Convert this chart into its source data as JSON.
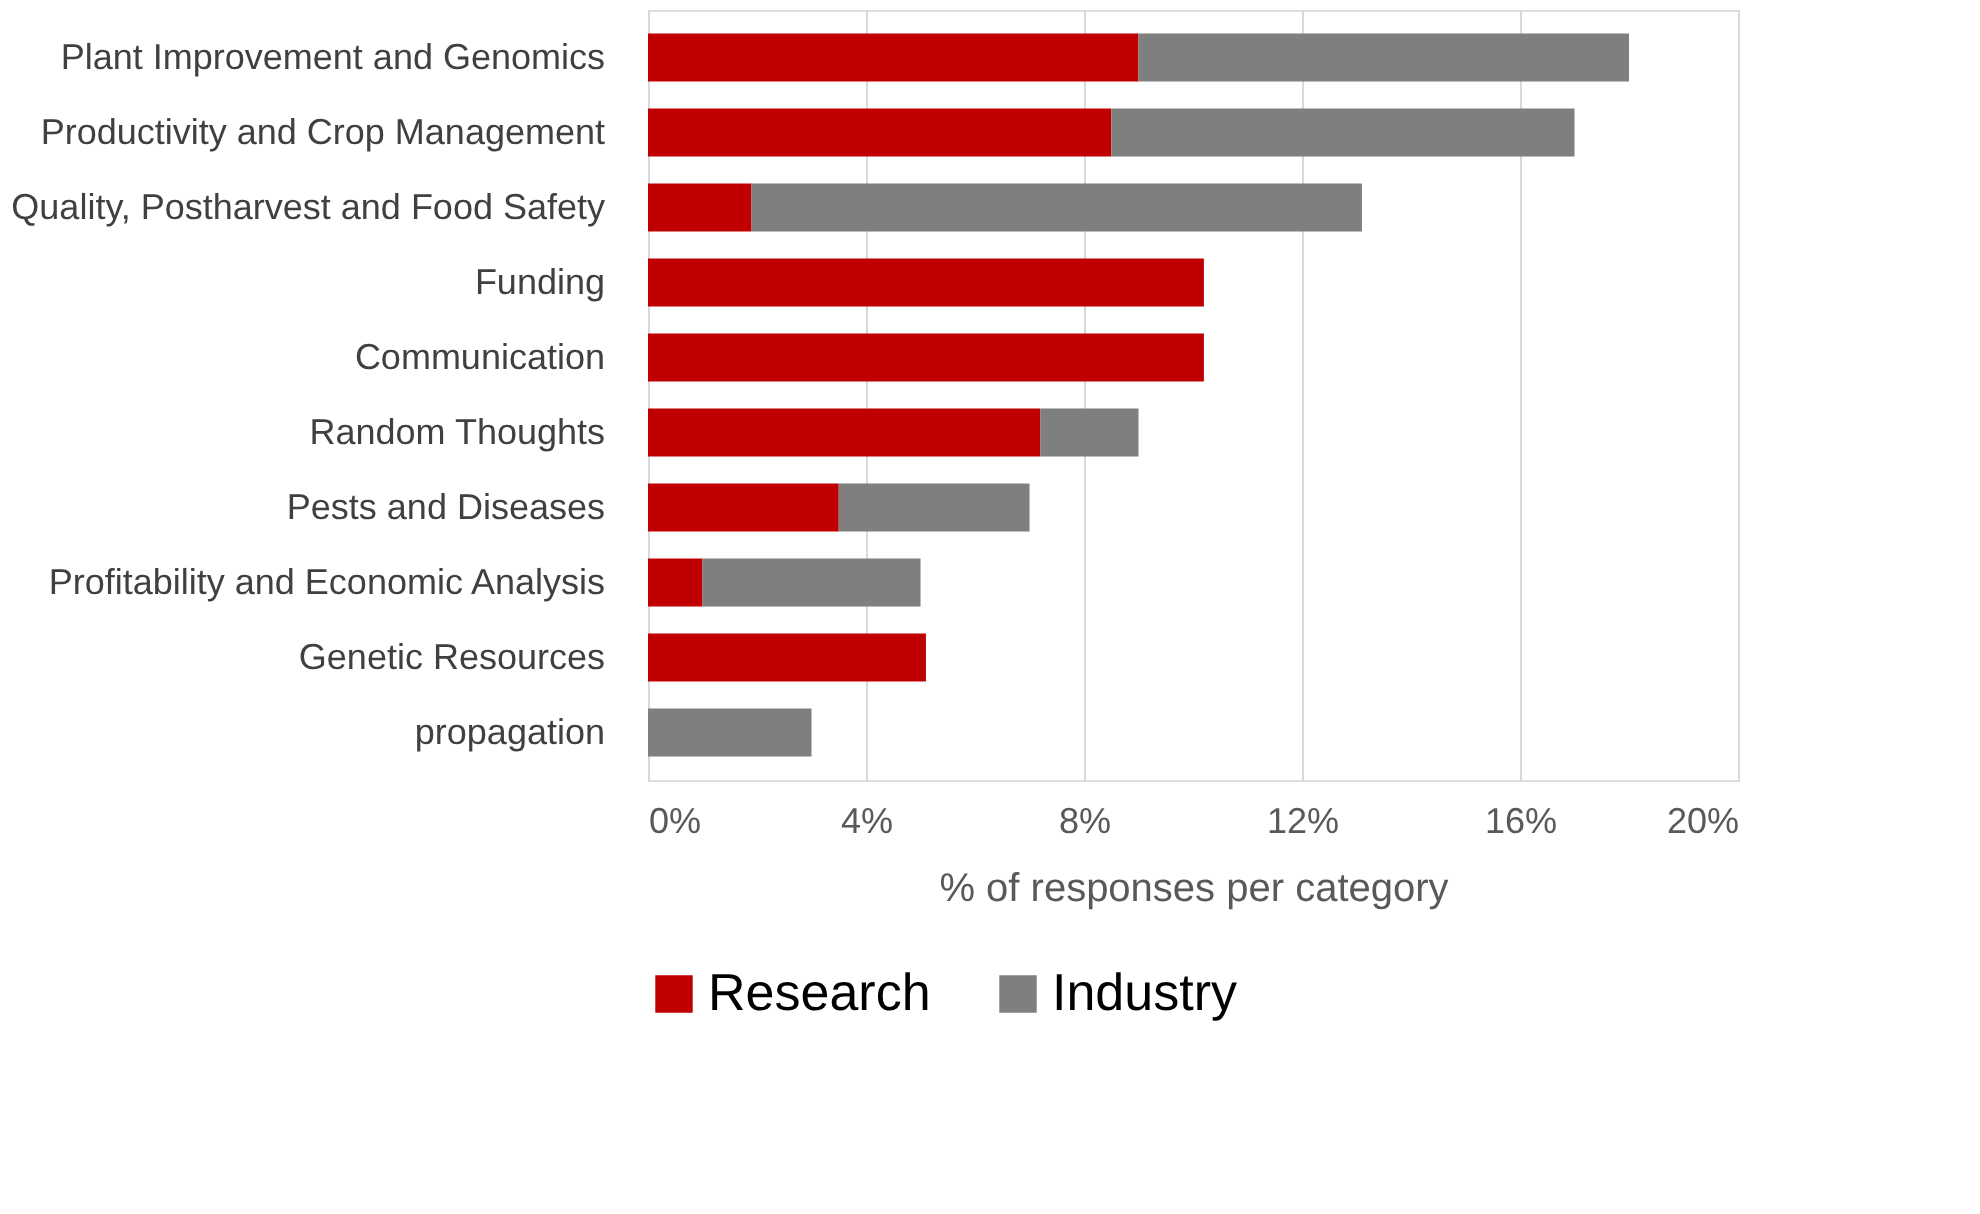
{
  "chart_data": {
    "type": "bar",
    "orientation": "horizontal",
    "stacked": true,
    "categories": [
      "Plant Improvement and Genomics",
      "Productivity and Crop Management",
      "Quality, Postharvest and Food Safety",
      "Funding",
      "Communication",
      "Random Thoughts",
      "Pests and Diseases",
      "Profitability and Economic Analysis",
      "Genetic Resources",
      "propagation"
    ],
    "series": [
      {
        "name": "Research",
        "color": "#c00000",
        "values": [
          9.0,
          8.5,
          1.9,
          10.2,
          10.2,
          7.2,
          3.5,
          1.0,
          5.1,
          null
        ]
      },
      {
        "name": "Industry",
        "color": "#7f7f7f",
        "values": [
          9.0,
          8.5,
          11.2,
          null,
          null,
          1.8,
          3.5,
          4.0,
          null,
          3.0
        ]
      }
    ],
    "xlabel": "% of responses per category",
    "xlim": [
      0,
      20
    ],
    "xticks": [
      {
        "value": 0,
        "label": "0%"
      },
      {
        "value": 4,
        "label": "4%"
      },
      {
        "value": 8,
        "label": "8%"
      },
      {
        "value": 12,
        "label": "12%"
      },
      {
        "value": 16,
        "label": "16%"
      },
      {
        "value": 20,
        "label": "20%"
      }
    ],
    "grid": "x",
    "legend": "bottom"
  }
}
